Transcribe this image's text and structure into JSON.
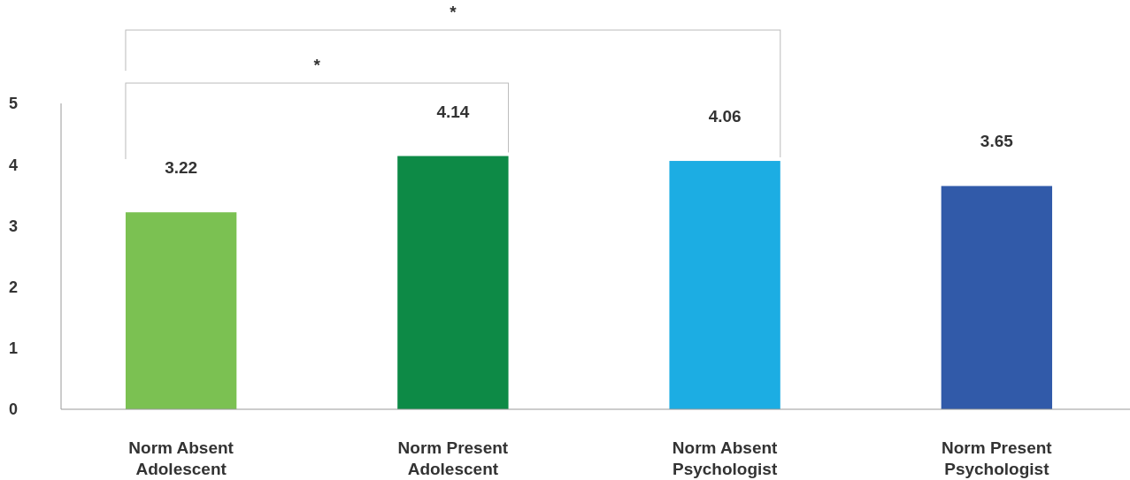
{
  "chart_data": {
    "type": "bar",
    "categories": [
      "Norm Absent Adolescent",
      "Norm Present Adolescent",
      "Norm Absent Psychologist",
      "Norm Present Psychologist"
    ],
    "values": [
      3.22,
      4.14,
      4.06,
      3.65
    ],
    "colors": [
      "#7bc152",
      "#0d8a46",
      "#1cade3",
      "#315aa9"
    ],
    "ylim": [
      0,
      5
    ],
    "yticks": [
      0,
      1,
      2,
      3,
      4,
      5
    ],
    "data_labels": true,
    "annotations": [
      "*",
      "*"
    ]
  }
}
